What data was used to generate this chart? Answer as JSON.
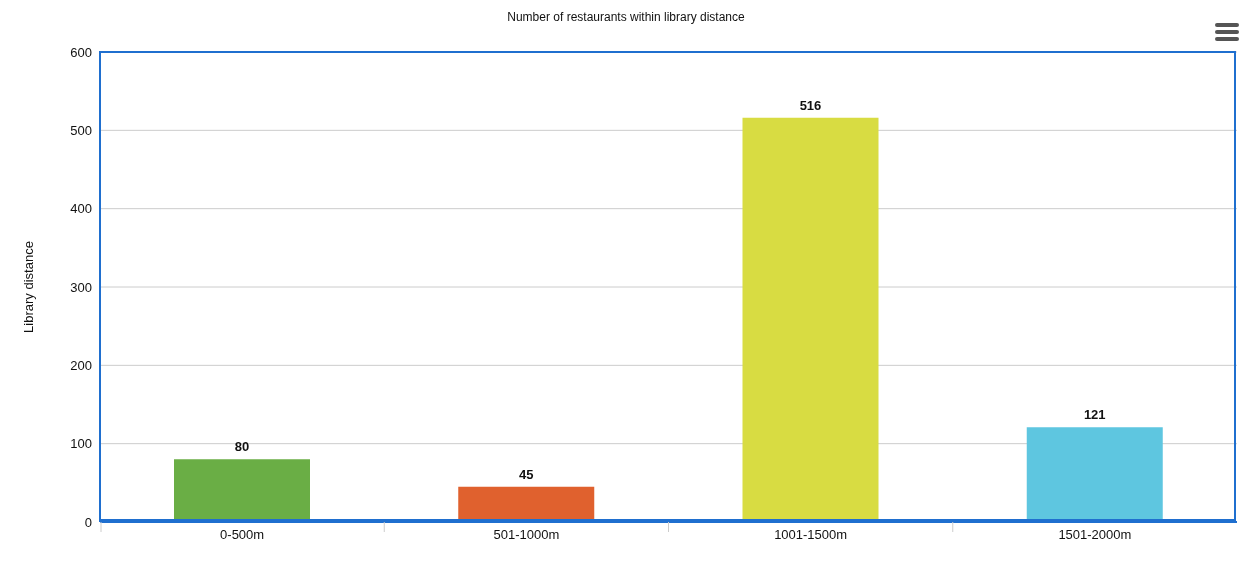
{
  "chart_data": {
    "type": "bar",
    "title": "Number of restaurants within library distance",
    "ylabel": "Library distance",
    "categories": [
      "0-500m",
      "501-1000m",
      "1001-1500m",
      "1501-2000m"
    ],
    "values": [
      80,
      45,
      516,
      121
    ],
    "colors": [
      "#6aae45",
      "#e0612e",
      "#d8dc42",
      "#5ec6e0"
    ],
    "ylim": [
      0,
      600
    ],
    "yticks": [
      0,
      100,
      200,
      300,
      400,
      500,
      600
    ],
    "grid": "y",
    "data_labels": true
  }
}
